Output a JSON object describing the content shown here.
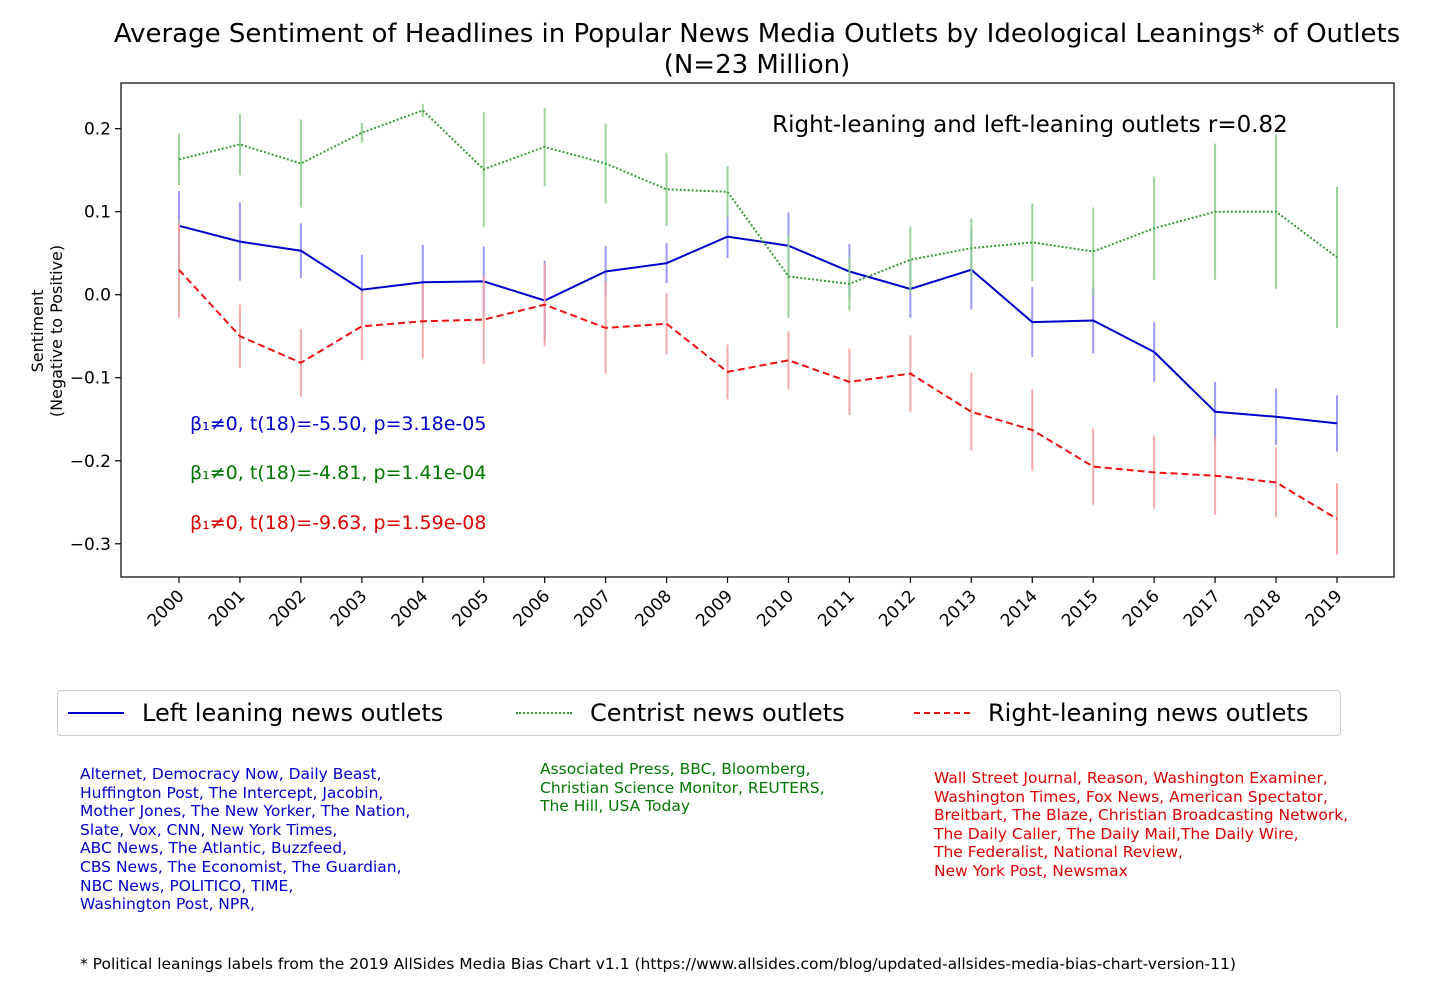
{
  "chart_data": {
    "type": "line",
    "title": "Average Sentiment of Headlines in Popular News Media Outlets by Ideological Leanings* of Outlets",
    "subtitle": "(N=23 Million)",
    "ylabel": "Sentiment",
    "ylabel_sub": "(Negative to Positive)",
    "xlabel": "",
    "ylim": [
      -0.34,
      0.255
    ],
    "yticks": [
      0.2,
      0.1,
      0.0,
      -0.1,
      -0.2,
      -0.3
    ],
    "ytick_labels": [
      "0.2",
      "0.1",
      "0.0",
      "−0.1",
      "−0.2",
      "−0.3"
    ],
    "categories": [
      "2000",
      "2001",
      "2002",
      "2003",
      "2004",
      "2005",
      "2006",
      "2007",
      "2008",
      "2009",
      "2010",
      "2011",
      "2012",
      "2013",
      "2014",
      "2015",
      "2016",
      "2017",
      "2018",
      "2019"
    ],
    "grid": false,
    "legend_placement": "bottom",
    "correlation_note": "Right-leaning and left-leaning outlets r=0.82",
    "series": [
      {
        "name": "Left leaning news outlets",
        "color": "#0000cc",
        "error_color": "#8f8ff5",
        "style": "solid",
        "values": [
          0.083,
          0.064,
          0.053,
          0.006,
          0.015,
          0.016,
          -0.007,
          0.028,
          0.038,
          0.07,
          0.059,
          0.028,
          0.007,
          0.03,
          -0.033,
          -0.031,
          -0.069,
          -0.141,
          -0.147,
          -0.155
        ],
        "errors": [
          0.042,
          0.047,
          0.033,
          0.042,
          0.045,
          0.042,
          0.048,
          0.031,
          0.024,
          0.026,
          0.04,
          0.033,
          0.035,
          0.048,
          0.042,
          0.04,
          0.036,
          0.036,
          0.034,
          0.034
        ],
        "stat": "β₁≠0, t(18)=-5.50, p=3.18e-05"
      },
      {
        "name": "Centrist news outlets",
        "color": "#3a9a3a",
        "error_color": "#8fcf8f",
        "style": "dotted",
        "values": [
          0.163,
          0.181,
          0.158,
          0.195,
          0.222,
          0.151,
          0.178,
          0.158,
          0.127,
          0.124,
          0.022,
          0.013,
          0.042,
          0.056,
          0.063,
          0.052,
          0.08,
          0.1,
          0.1,
          0.045
        ],
        "errors": [
          0.031,
          0.037,
          0.053,
          0.012,
          0.008,
          0.069,
          0.047,
          0.048,
          0.044,
          0.031,
          0.05,
          0.032,
          0.04,
          0.036,
          0.047,
          0.053,
          0.062,
          0.082,
          0.093,
          0.085
        ],
        "stat": "β₁≠0, t(18)=-4.81, p=1.41e-04"
      },
      {
        "name": "Right-leaning news outlets",
        "color": "#ee1111",
        "error_color": "#f4a0a0",
        "style": "dashed",
        "values": [
          0.03,
          -0.05,
          -0.082,
          -0.038,
          -0.032,
          -0.03,
          -0.012,
          -0.04,
          -0.035,
          -0.093,
          -0.079,
          -0.105,
          -0.095,
          -0.141,
          -0.163,
          -0.207,
          -0.214,
          -0.218,
          -0.226,
          -0.27
        ],
        "errors": [
          0.058,
          0.038,
          0.041,
          0.041,
          0.045,
          0.053,
          0.05,
          0.055,
          0.037,
          0.033,
          0.035,
          0.04,
          0.046,
          0.047,
          0.049,
          0.046,
          0.044,
          0.047,
          0.042,
          0.043
        ],
        "stat": "β₁≠0, t(18)=-9.63, p=1.59e-08"
      }
    ]
  },
  "outlets": {
    "left": "Alternet, Democracy Now, Daily Beast,\nHuffington Post, The Intercept, Jacobin,\nMother Jones, The New Yorker, The Nation,\nSlate, Vox, CNN, New York Times,\nABC News, The Atlantic, Buzzfeed,\nCBS News, The Economist, The Guardian,\nNBC News, POLITICO, TIME,\nWashington Post, NPR,",
    "centrist": "Associated Press, BBC, Bloomberg,\nChristian Science Monitor, REUTERS,\nThe Hill, USA Today",
    "right": "Wall Street Journal, Reason, Washington Examiner,\nWashington Times, Fox News, American Spectator,\nBreitbart, The Blaze, Christian Broadcasting Network,\nThe Daily Caller, The Daily Mail,The Daily Wire,\nThe Federalist, National Review,\nNew York Post, Newsmax"
  },
  "footnote": "* Political leanings labels from the 2019 AllSides Media Bias Chart v1.1 (https://www.allsides.com/blog/updated-allsides-media-bias-chart-version-11)"
}
